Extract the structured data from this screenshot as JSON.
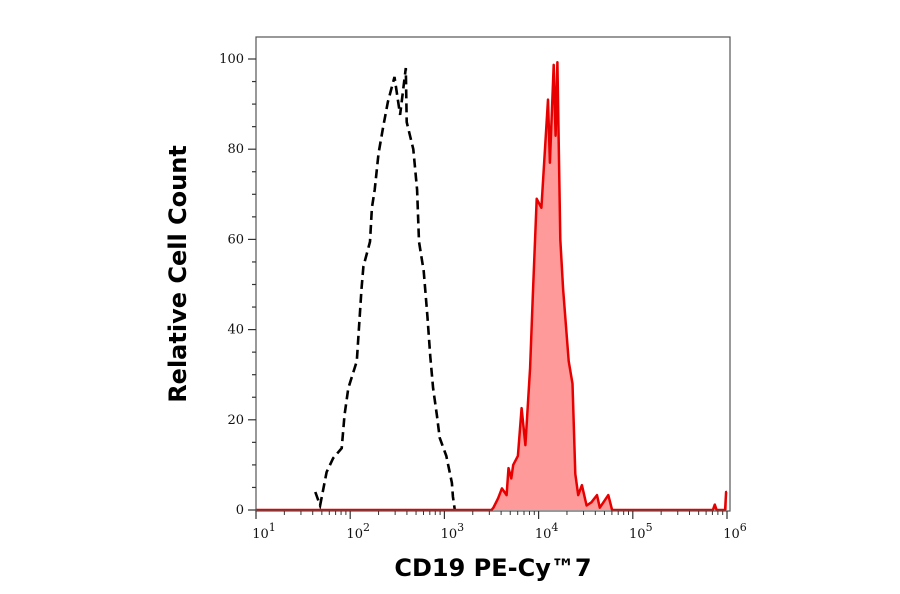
{
  "chart_data": {
    "type": "area",
    "xlabel": "CD19 PE-Cy™7",
    "ylabel": "Relative Cell Count",
    "xscale": "log",
    "xlim": [
      10,
      1000000
    ],
    "ylim": [
      0,
      100
    ],
    "xticks": [
      1,
      2,
      3,
      4,
      5,
      6
    ],
    "xtick_base": "10",
    "yticks": [
      0,
      20,
      40,
      60,
      80,
      100
    ],
    "grid": false,
    "series": [
      {
        "style": "dashed-line",
        "color": "#000000",
        "points_log10x": [
          [
            1.63,
            4
          ],
          [
            1.68,
            1
          ],
          [
            1.75,
            8.4
          ],
          [
            1.82,
            11.5
          ],
          [
            1.91,
            13.7
          ],
          [
            1.94,
            21
          ],
          [
            1.98,
            27
          ],
          [
            2.07,
            33
          ],
          [
            2.09,
            39.5
          ],
          [
            2.12,
            49
          ],
          [
            2.14,
            54
          ],
          [
            2.21,
            59.5
          ],
          [
            2.23,
            67
          ],
          [
            2.26,
            71
          ],
          [
            2.3,
            79
          ],
          [
            2.35,
            85
          ],
          [
            2.4,
            90.5
          ],
          [
            2.47,
            96
          ],
          [
            2.53,
            87.6
          ],
          [
            2.59,
            98
          ],
          [
            2.6,
            86
          ],
          [
            2.67,
            80
          ],
          [
            2.71,
            71
          ],
          [
            2.73,
            59.5
          ],
          [
            2.78,
            53
          ],
          [
            2.82,
            43
          ],
          [
            2.85,
            34
          ],
          [
            2.88,
            27
          ],
          [
            2.92,
            21
          ],
          [
            2.95,
            16
          ],
          [
            3.02,
            12
          ],
          [
            3.08,
            6
          ],
          [
            3.09,
            3
          ],
          [
            3.11,
            0
          ]
        ]
      },
      {
        "style": "filled",
        "color": "#e80000",
        "fill": "#ff9a9a",
        "points_log10x": [
          [
            1.0,
            0
          ],
          [
            3.5,
            0
          ],
          [
            3.52,
            0.5
          ],
          [
            3.57,
            2.6
          ],
          [
            3.61,
            4.8
          ],
          [
            3.66,
            3.3
          ],
          [
            3.68,
            9.3
          ],
          [
            3.71,
            7
          ],
          [
            3.73,
            10
          ],
          [
            3.78,
            12
          ],
          [
            3.82,
            22.6
          ],
          [
            3.86,
            14.4
          ],
          [
            3.91,
            31.5
          ],
          [
            3.94,
            48
          ],
          [
            3.98,
            69
          ],
          [
            4.03,
            67
          ],
          [
            4.1,
            91
          ],
          [
            4.12,
            77
          ],
          [
            4.16,
            98.7
          ],
          [
            4.18,
            83
          ],
          [
            4.2,
            99.3
          ],
          [
            4.23,
            60
          ],
          [
            4.26,
            49
          ],
          [
            4.32,
            33
          ],
          [
            4.36,
            28
          ],
          [
            4.39,
            8
          ],
          [
            4.42,
            3.3
          ],
          [
            4.46,
            5.5
          ],
          [
            4.51,
            1
          ],
          [
            4.56,
            1.7
          ],
          [
            4.62,
            3.3
          ],
          [
            4.65,
            0.5
          ],
          [
            4.74,
            3.3
          ],
          [
            4.78,
            0
          ],
          [
            5.85,
            0
          ],
          [
            5.87,
            1.2
          ],
          [
            5.89,
            0
          ],
          [
            5.98,
            0
          ],
          [
            5.99,
            4
          ],
          [
            6.0,
            4
          ]
        ]
      }
    ]
  }
}
